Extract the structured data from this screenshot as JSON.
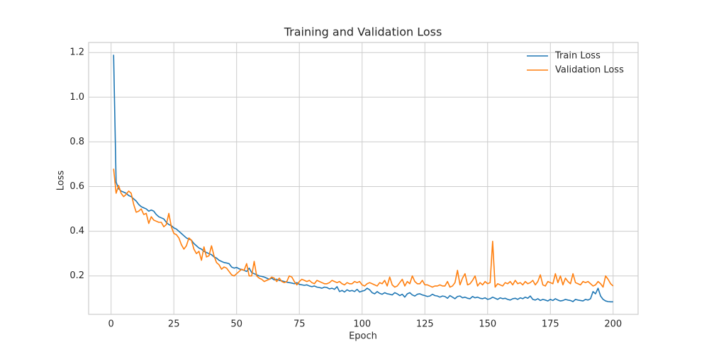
{
  "chart_data": {
    "type": "line",
    "title": "Training and Validation Loss",
    "xlabel": "Epoch",
    "ylabel": "Loss",
    "x": [
      1,
      2,
      3,
      4,
      5,
      6,
      7,
      8,
      9,
      10,
      11,
      12,
      13,
      14,
      15,
      16,
      17,
      18,
      19,
      20,
      21,
      22,
      23,
      24,
      25,
      26,
      27,
      28,
      29,
      30,
      31,
      32,
      33,
      34,
      35,
      36,
      37,
      38,
      39,
      40,
      41,
      42,
      43,
      44,
      45,
      46,
      47,
      48,
      49,
      50,
      51,
      52,
      53,
      54,
      55,
      56,
      57,
      58,
      59,
      60,
      61,
      62,
      63,
      64,
      65,
      66,
      67,
      68,
      69,
      70,
      71,
      72,
      73,
      74,
      75,
      76,
      77,
      78,
      79,
      80,
      81,
      82,
      83,
      84,
      85,
      86,
      87,
      88,
      89,
      90,
      91,
      92,
      93,
      94,
      95,
      96,
      97,
      98,
      99,
      100,
      101,
      102,
      103,
      104,
      105,
      106,
      107,
      108,
      109,
      110,
      111,
      112,
      113,
      114,
      115,
      116,
      117,
      118,
      119,
      120,
      121,
      122,
      123,
      124,
      125,
      126,
      127,
      128,
      129,
      130,
      131,
      132,
      133,
      134,
      135,
      136,
      137,
      138,
      139,
      140,
      141,
      142,
      143,
      144,
      145,
      146,
      147,
      148,
      149,
      150,
      151,
      152,
      153,
      154,
      155,
      156,
      157,
      158,
      159,
      160,
      161,
      162,
      163,
      164,
      165,
      166,
      167,
      168,
      169,
      170,
      171,
      172,
      173,
      174,
      175,
      176,
      177,
      178,
      179,
      180,
      181,
      182,
      183,
      184,
      185,
      186,
      187,
      188,
      189,
      190,
      191,
      192,
      193,
      194,
      195,
      196,
      197,
      198,
      199,
      200
    ],
    "series": [
      {
        "name": "Train Loss",
        "color": "#1f77b4",
        "values": [
          1.19,
          0.62,
          0.59,
          0.58,
          0.575,
          0.57,
          0.56,
          0.555,
          0.545,
          0.535,
          0.52,
          0.51,
          0.505,
          0.5,
          0.49,
          0.495,
          0.49,
          0.475,
          0.465,
          0.46,
          0.455,
          0.44,
          0.43,
          0.425,
          0.415,
          0.41,
          0.4,
          0.39,
          0.38,
          0.37,
          0.365,
          0.36,
          0.345,
          0.335,
          0.325,
          0.32,
          0.31,
          0.305,
          0.3,
          0.295,
          0.285,
          0.28,
          0.27,
          0.265,
          0.26,
          0.258,
          0.255,
          0.24,
          0.235,
          0.238,
          0.232,
          0.228,
          0.225,
          0.22,
          0.235,
          0.215,
          0.21,
          0.205,
          0.2,
          0.198,
          0.195,
          0.19,
          0.185,
          0.19,
          0.182,
          0.185,
          0.18,
          0.178,
          0.175,
          0.172,
          0.17,
          0.168,
          0.165,
          0.17,
          0.162,
          0.16,
          0.158,
          0.16,
          0.155,
          0.152,
          0.155,
          0.15,
          0.148,
          0.145,
          0.15,
          0.148,
          0.142,
          0.145,
          0.14,
          0.152,
          0.13,
          0.135,
          0.128,
          0.138,
          0.132,
          0.135,
          0.13,
          0.14,
          0.128,
          0.132,
          0.135,
          0.145,
          0.138,
          0.125,
          0.12,
          0.13,
          0.122,
          0.118,
          0.125,
          0.12,
          0.118,
          0.115,
          0.125,
          0.12,
          0.112,
          0.118,
          0.105,
          0.12,
          0.125,
          0.115,
          0.11,
          0.118,
          0.12,
          0.115,
          0.112,
          0.108,
          0.11,
          0.118,
          0.112,
          0.11,
          0.105,
          0.11,
          0.108,
          0.1,
          0.112,
          0.105,
          0.098,
          0.108,
          0.11,
          0.102,
          0.105,
          0.1,
          0.098,
          0.108,
          0.102,
          0.105,
          0.1,
          0.098,
          0.102,
          0.095,
          0.098,
          0.105,
          0.1,
          0.095,
          0.102,
          0.098,
          0.1,
          0.095,
          0.092,
          0.098,
          0.1,
          0.095,
          0.102,
          0.098,
          0.105,
          0.1,
          0.11,
          0.095,
          0.092,
          0.098,
          0.09,
          0.095,
          0.092,
          0.088,
          0.095,
          0.09,
          0.098,
          0.092,
          0.088,
          0.09,
          0.095,
          0.092,
          0.09,
          0.085,
          0.095,
          0.092,
          0.09,
          0.088,
          0.095,
          0.092,
          0.098,
          0.13,
          0.12,
          0.145,
          0.11,
          0.095,
          0.088,
          0.085,
          0.084,
          0.084
        ]
      },
      {
        "name": "Validation Loss",
        "color": "#ff7f0e",
        "values": [
          0.68,
          0.57,
          0.605,
          0.57,
          0.555,
          0.565,
          0.58,
          0.57,
          0.52,
          0.485,
          0.49,
          0.5,
          0.475,
          0.48,
          0.435,
          0.465,
          0.45,
          0.445,
          0.44,
          0.44,
          0.42,
          0.43,
          0.48,
          0.42,
          0.39,
          0.385,
          0.37,
          0.34,
          0.32,
          0.335,
          0.37,
          0.36,
          0.32,
          0.3,
          0.31,
          0.27,
          0.33,
          0.285,
          0.29,
          0.335,
          0.29,
          0.26,
          0.25,
          0.23,
          0.24,
          0.235,
          0.22,
          0.205,
          0.2,
          0.21,
          0.22,
          0.23,
          0.225,
          0.255,
          0.2,
          0.2,
          0.265,
          0.2,
          0.19,
          0.185,
          0.175,
          0.18,
          0.185,
          0.195,
          0.19,
          0.175,
          0.19,
          0.175,
          0.17,
          0.175,
          0.2,
          0.195,
          0.175,
          0.16,
          0.175,
          0.185,
          0.18,
          0.175,
          0.18,
          0.17,
          0.165,
          0.18,
          0.175,
          0.17,
          0.165,
          0.165,
          0.17,
          0.18,
          0.175,
          0.17,
          0.175,
          0.165,
          0.16,
          0.17,
          0.165,
          0.165,
          0.175,
          0.17,
          0.175,
          0.16,
          0.155,
          0.165,
          0.17,
          0.165,
          0.16,
          0.155,
          0.17,
          0.165,
          0.18,
          0.155,
          0.195,
          0.16,
          0.15,
          0.155,
          0.17,
          0.185,
          0.155,
          0.175,
          0.165,
          0.2,
          0.175,
          0.165,
          0.165,
          0.18,
          0.16,
          0.16,
          0.155,
          0.15,
          0.155,
          0.155,
          0.16,
          0.155,
          0.155,
          0.175,
          0.15,
          0.155,
          0.17,
          0.225,
          0.16,
          0.19,
          0.21,
          0.16,
          0.165,
          0.18,
          0.2,
          0.155,
          0.17,
          0.16,
          0.175,
          0.165,
          0.17,
          0.355,
          0.15,
          0.165,
          0.16,
          0.155,
          0.17,
          0.165,
          0.175,
          0.16,
          0.18,
          0.165,
          0.17,
          0.16,
          0.175,
          0.165,
          0.17,
          0.18,
          0.16,
          0.175,
          0.205,
          0.16,
          0.155,
          0.175,
          0.17,
          0.165,
          0.21,
          0.17,
          0.2,
          0.16,
          0.19,
          0.175,
          0.165,
          0.21,
          0.17,
          0.165,
          0.16,
          0.175,
          0.17,
          0.175,
          0.165,
          0.155,
          0.16,
          0.175,
          0.165,
          0.15,
          0.2,
          0.185,
          0.165,
          0.155
        ]
      }
    ],
    "xlim": [
      -8.95,
      209.95
    ],
    "xticks": [
      0,
      25,
      50,
      75,
      100,
      125,
      150,
      175,
      200
    ],
    "ylim": [
      0.028,
      1.245
    ],
    "yticks": [
      0.2,
      0.4,
      0.6,
      0.8,
      {
        "value": 1,
        "label": "1.0"
      },
      1.2
    ],
    "grid": true,
    "legend": "upper right"
  }
}
